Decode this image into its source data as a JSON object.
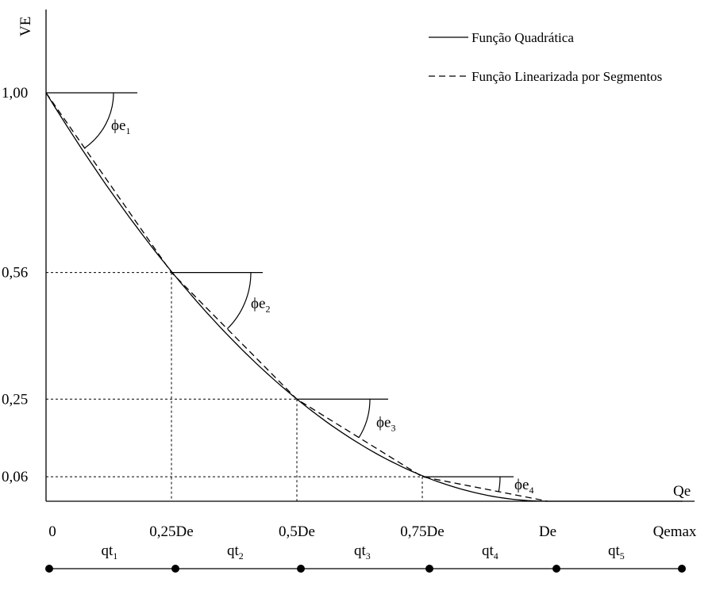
{
  "axes": {
    "y_label": "VE",
    "x_label": "Qe"
  },
  "legend": {
    "solid": "Função Quadrática",
    "dashed": "Função Linearizada por Segmentos"
  },
  "chart_data": {
    "type": "line",
    "title": "",
    "xlabel": "Qe",
    "ylabel": "VE",
    "x_ticks": [
      "0",
      "0,25De",
      "0,5De",
      "0,75De",
      "De",
      "Qemax"
    ],
    "y_ticks": [
      "1,00",
      "0,56",
      "0,25",
      "0,06"
    ],
    "series": [
      {
        "name": "Função Quadrática",
        "style": "solid",
        "x": [
          0,
          0.25,
          0.5,
          0.75,
          1.0
        ],
        "y": [
          1.0,
          0.5625,
          0.25,
          0.0625,
          0.0
        ]
      },
      {
        "name": "Função Linearizada por Segmentos",
        "style": "dashed",
        "x": [
          0,
          0.25,
          0.5,
          0.75,
          1.0
        ],
        "y": [
          1.0,
          0.56,
          0.25,
          0.06,
          0.0
        ]
      }
    ],
    "x_after_De": [
      1.0,
      1.25
    ],
    "y_after_De": [
      0.0,
      0.0
    ],
    "angles": [
      {
        "base": "ϕe",
        "sub": "1",
        "at_x": 0.0,
        "at_y": 1.0
      },
      {
        "base": "ϕe",
        "sub": "2",
        "at_x": 0.25,
        "at_y": 0.56
      },
      {
        "base": "ϕe",
        "sub": "3",
        "at_x": 0.5,
        "at_y": 0.25
      },
      {
        "base": "ϕe",
        "sub": "4",
        "at_x": 0.75,
        "at_y": 0.06
      }
    ],
    "colors": {
      "line": "#000000",
      "background": "#ffffff"
    }
  },
  "segments": [
    {
      "base": "qt",
      "sub": "1"
    },
    {
      "base": "qt",
      "sub": "2"
    },
    {
      "base": "qt",
      "sub": "3"
    },
    {
      "base": "qt",
      "sub": "4"
    },
    {
      "base": "qt",
      "sub": "5"
    }
  ]
}
